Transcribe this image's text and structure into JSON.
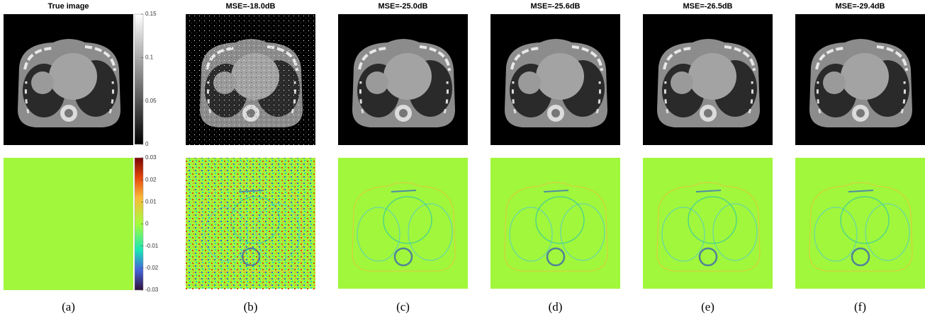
{
  "columns": [
    {
      "title": "True image",
      "label": "(a)"
    },
    {
      "title": "MSE=-18.0dB",
      "label": "(b)"
    },
    {
      "title": "MSE=-25.0dB",
      "label": "(c)"
    },
    {
      "title": "MSE=-25.6dB",
      "label": "(d)"
    },
    {
      "title": "MSE=-26.5dB",
      "label": "(e)"
    },
    {
      "title": "MSE=-29.4dB",
      "label": "(f)"
    }
  ],
  "colorbars": [
    {
      "lim": [
        0,
        0.15
      ],
      "ticks": [
        0,
        0.05,
        0.1,
        0.15
      ]
    },
    {
      "lim": [
        -0.03,
        0.03
      ],
      "ticks": [
        -0.03,
        -0.02,
        -0.01,
        0,
        0.01,
        0.02,
        0.03
      ]
    }
  ]
}
